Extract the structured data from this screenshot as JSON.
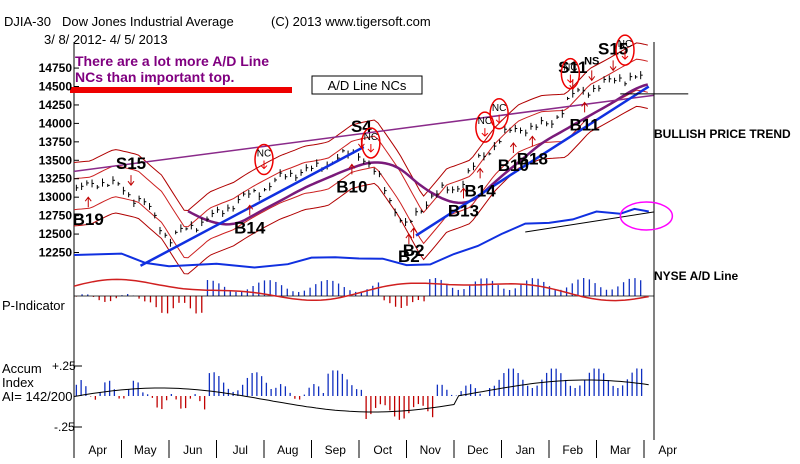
{
  "header": {
    "symbol": "DJIA-30",
    "name": "Dow Jones Industrial Average",
    "copyright": "(C) 2013 www.tigersoft.com",
    "date_range": "3/ 8/ 2012- 4/ 5/ 2013"
  },
  "annotations": {
    "note_line1": "There are a lot more A/D Line",
    "note_line2": "NCs than important top.",
    "ad_nc_box": "A/D Line NCs",
    "bullish_trend": "BULLISH PRICE TREND",
    "nyse_ad": "NYSE A/D Line",
    "nc": "NC"
  },
  "signals": [
    {
      "label": "S15",
      "t": 1.2,
      "size": "large"
    },
    {
      "label": "S4",
      "t": 6.05,
      "size": "large"
    },
    {
      "label": "S11",
      "t": 10.5,
      "size": "large"
    },
    {
      "label": "S15",
      "t": 11.35,
      "size": "large"
    },
    {
      "label": "NS",
      "t": 10.9,
      "size": "small"
    },
    {
      "label": "B19",
      "t": 0.3,
      "size": "large"
    },
    {
      "label": "B14",
      "t": 3.7,
      "size": "large"
    },
    {
      "label": "B10",
      "t": 5.85,
      "size": "large"
    },
    {
      "label": "B2",
      "t": 7.05,
      "size": "large"
    },
    {
      "label": "B2",
      "t": 7.15,
      "size": "large"
    },
    {
      "label": "B13",
      "t": 8.2,
      "size": "large"
    },
    {
      "label": "B14",
      "t": 8.55,
      "size": "large"
    },
    {
      "label": "B10",
      "t": 9.25,
      "size": "large"
    },
    {
      "label": "B18",
      "t": 9.65,
      "size": "large"
    },
    {
      "label": "B11",
      "t": 10.75,
      "size": "large"
    }
  ],
  "nc_markers": [
    4.0,
    6.25,
    8.65,
    8.95,
    10.45,
    11.6
  ],
  "p_indicator_label": "P-Indicator",
  "accum": {
    "line1": "Accum",
    "line2": "Index",
    "line3": "AI= 142/200",
    "plus": "+.25",
    "minus": "-.25"
  },
  "chart_data": {
    "type": "line",
    "title": "DJIA-30 Dow Jones Industrial Average",
    "subtitle": "3/ 8/ 2012- 4/ 5/ 2013",
    "x_unit": "months since 2012-03-08",
    "months": [
      "Apr",
      "May",
      "Jun",
      "Jul",
      "Aug",
      "Sep",
      "Oct",
      "Nov",
      "Dec",
      "Jan",
      "Feb",
      "Mar",
      "Apr"
    ],
    "y_ticks": [
      12250,
      12500,
      12750,
      13000,
      13250,
      13500,
      13750,
      14000,
      14250,
      14500,
      14750
    ],
    "ylim": [
      12040,
      14900
    ],
    "series": [
      {
        "name": "DJIA",
        "x": [
          0,
          0.5,
          1,
          1.5,
          2,
          2.5,
          3,
          3.5,
          4,
          4.5,
          5,
          5.5,
          6,
          6.5,
          7,
          7.5,
          8,
          8.5,
          9,
          9.5,
          10,
          10.5,
          11,
          11.5,
          12.1
        ],
        "y": [
          13050,
          13200,
          13150,
          12900,
          12400,
          12650,
          12750,
          12950,
          13150,
          13300,
          13350,
          13550,
          13600,
          13150,
          12600,
          13000,
          13100,
          13500,
          13800,
          13950,
          14000,
          14350,
          14500,
          14650,
          14550
        ]
      },
      {
        "name": "A/D Line NC trendline",
        "x": [
          0,
          12.2
        ],
        "y": [
          13350,
          14380
        ]
      },
      {
        "name": "Uptrend line 1",
        "x": [
          1.4,
          6.1
        ],
        "y": [
          12070,
          13680
        ]
      },
      {
        "name": "Uptrend line 2",
        "x": [
          7.2,
          12.1
        ],
        "y": [
          12480,
          14500
        ]
      }
    ],
    "legend": "none",
    "grid": false
  }
}
